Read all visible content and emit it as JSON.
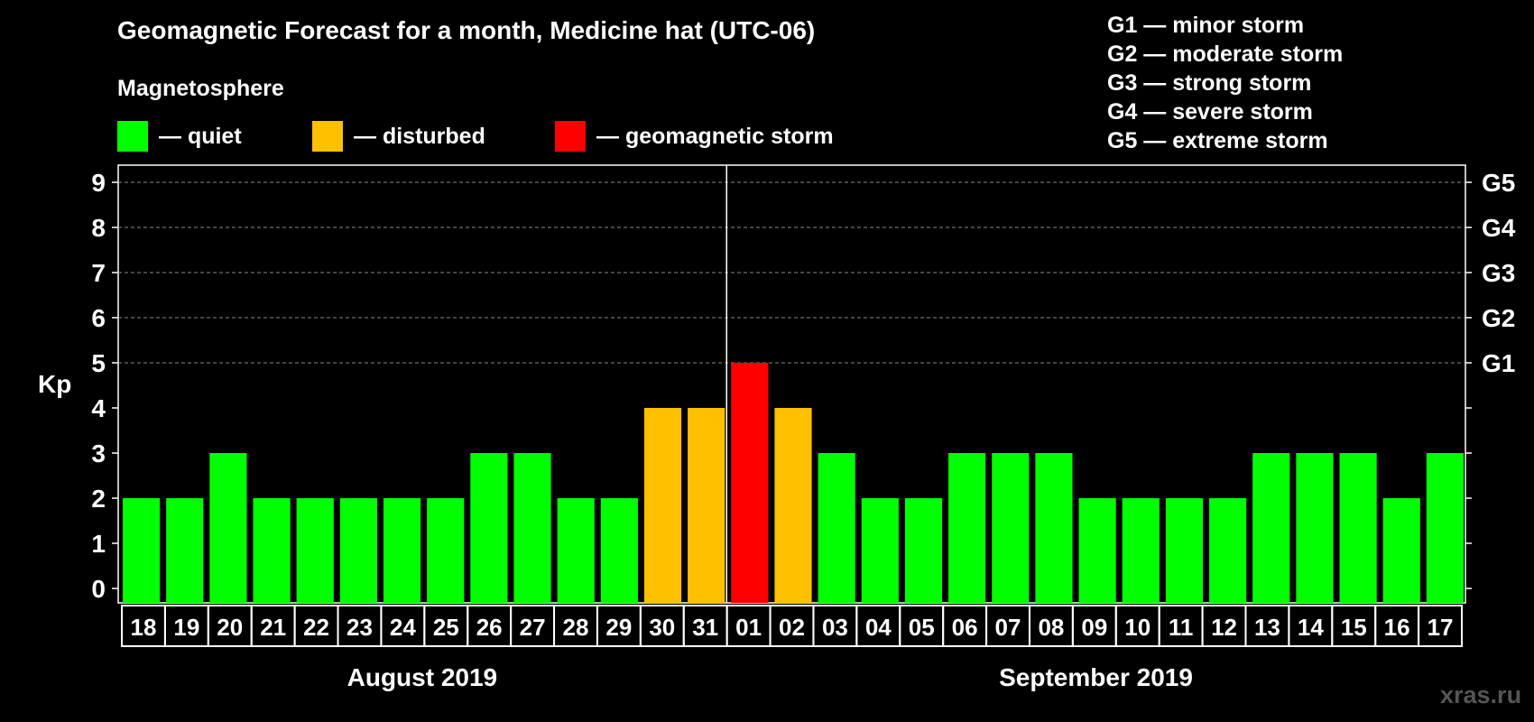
{
  "title": "Geomagnetic Forecast for a month, Medicine hat (UTC-06)",
  "magnetosphere": {
    "title": "Magnetosphere",
    "items": [
      {
        "label": "— quiet",
        "color": "#00ff00"
      },
      {
        "label": "— disturbed",
        "color": "#ffc000"
      },
      {
        "label": "— geomagnetic storm",
        "color": "#ff0000"
      }
    ]
  },
  "storm_levels": [
    "G1 — minor storm",
    "G2 — moderate storm",
    "G3 — strong storm",
    "G4 — severe storm",
    "G5 — extreme storm"
  ],
  "watermark": "xras.ru",
  "chart_data": {
    "type": "bar",
    "ylabel": "Kp",
    "ylim": [
      0,
      9
    ],
    "yticks": [
      "0",
      "1",
      "2",
      "3",
      "4",
      "5",
      "6",
      "7",
      "8",
      "9"
    ],
    "right_ticks": [
      {
        "value": 5,
        "label": "G1"
      },
      {
        "value": 6,
        "label": "G2"
      },
      {
        "value": 7,
        "label": "G3"
      },
      {
        "value": 8,
        "label": "G4"
      },
      {
        "value": 9,
        "label": "G5"
      }
    ],
    "grid": "horizontal dashed at 5–9",
    "categories": [
      "18",
      "19",
      "20",
      "21",
      "22",
      "23",
      "24",
      "25",
      "26",
      "27",
      "28",
      "29",
      "30",
      "31",
      "01",
      "02",
      "03",
      "04",
      "05",
      "06",
      "07",
      "08",
      "09",
      "10",
      "11",
      "12",
      "13",
      "14",
      "15",
      "16",
      "17"
    ],
    "values": [
      2,
      2,
      3,
      2,
      2,
      2,
      2,
      2,
      3,
      3,
      2,
      2,
      4,
      4,
      5,
      4,
      3,
      2,
      2,
      3,
      3,
      3,
      2,
      2,
      2,
      2,
      3,
      3,
      3,
      2,
      3
    ],
    "months": [
      {
        "label": "August 2019",
        "from": "18",
        "to": "31"
      },
      {
        "label": "September 2019",
        "from": "01",
        "to": "17"
      }
    ],
    "colors": {
      "quiet": "#00ff00",
      "disturbed": "#ffc000",
      "storm": "#ff0000"
    }
  }
}
